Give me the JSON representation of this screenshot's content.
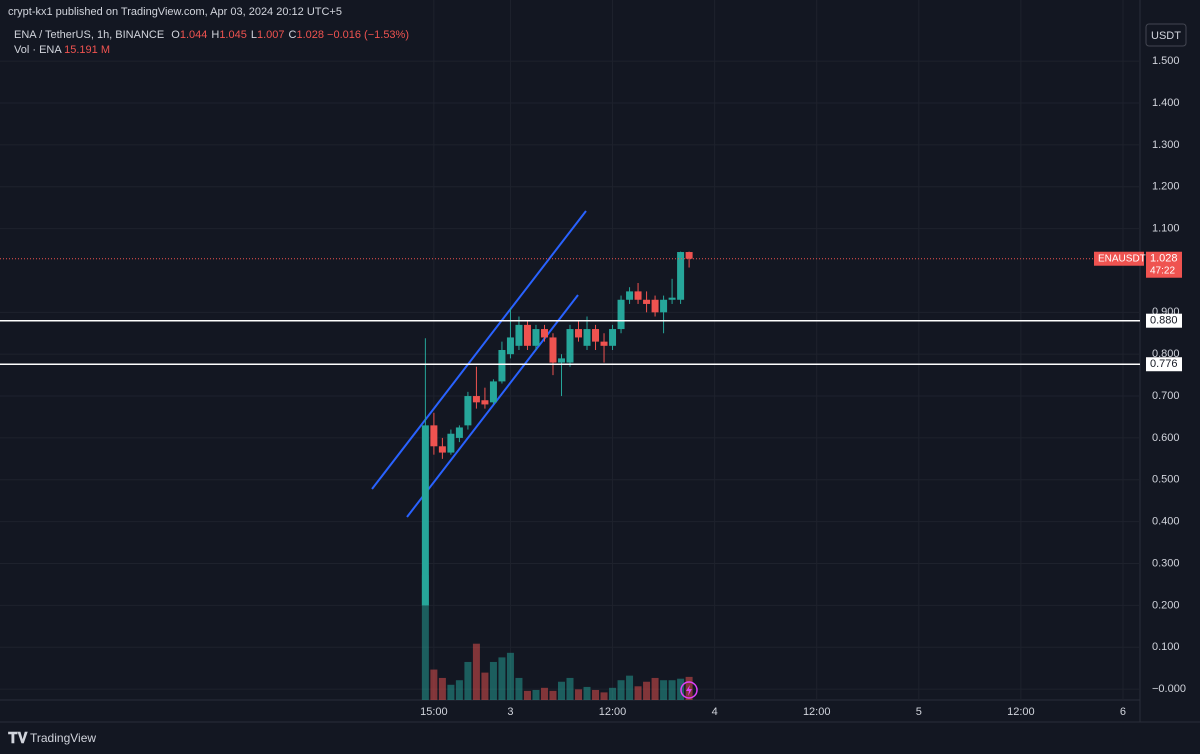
{
  "publisher": "crypt-kx1 published on TradingView.com, Apr 03, 2024 20:12 UTC+5",
  "brand": "TradingView",
  "legend": {
    "symbol": "ENA / TetherUS, 1h, BINANCE",
    "ohlc": [
      {
        "key": "O",
        "value": "1.044"
      },
      {
        "key": "H",
        "value": "1.045"
      },
      {
        "key": "L",
        "value": "1.007"
      },
      {
        "key": "C",
        "value": "1.028"
      }
    ],
    "change": "−0.016 (−1.53%)",
    "volume_name": "Vol · ENA"
  },
  "chart_data": {
    "type": "candlestick",
    "currency": "USDT",
    "up_color": "#26a69a",
    "down_color": "#ef5350",
    "open": [
      0.2,
      0.63,
      0.58,
      0.565,
      0.6,
      0.63,
      0.7,
      0.69,
      0.685,
      0.735,
      0.8,
      0.82,
      0.87,
      0.82,
      0.86,
      0.84,
      0.78,
      0.78,
      0.86,
      0.82,
      0.86,
      0.83,
      0.82,
      0.86,
      0.93,
      0.95,
      0.93,
      0.93,
      0.9,
      0.93,
      0.93,
      1.044
    ],
    "high": [
      0.838,
      0.66,
      0.6,
      0.62,
      0.63,
      0.71,
      0.77,
      0.72,
      0.74,
      0.83,
      0.91,
      0.89,
      0.88,
      0.87,
      0.87,
      0.85,
      0.8,
      0.87,
      0.88,
      0.89,
      0.87,
      0.85,
      0.87,
      0.94,
      0.96,
      0.97,
      0.95,
      0.94,
      0.94,
      0.98,
      1.045,
      1.045
    ],
    "low": [
      0.2,
      0.56,
      0.55,
      0.56,
      0.59,
      0.62,
      0.67,
      0.67,
      0.68,
      0.73,
      0.79,
      0.81,
      0.81,
      0.81,
      0.83,
      0.75,
      0.7,
      0.77,
      0.83,
      0.81,
      0.81,
      0.78,
      0.81,
      0.85,
      0.92,
      0.92,
      0.9,
      0.89,
      0.85,
      0.92,
      0.92,
      1.007
    ],
    "close": [
      0.63,
      0.58,
      0.565,
      0.61,
      0.625,
      0.7,
      0.685,
      0.68,
      0.735,
      0.81,
      0.84,
      0.87,
      0.82,
      0.86,
      0.84,
      0.78,
      0.79,
      0.86,
      0.84,
      0.86,
      0.83,
      0.82,
      0.86,
      0.93,
      0.95,
      0.93,
      0.92,
      0.9,
      0.93,
      0.935,
      1.044,
      1.028
    ],
    "volume": [
      82,
      20,
      14.5,
      10,
      13,
      25,
      37,
      18,
      25,
      28,
      31,
      14.5,
      6,
      6.6,
      8,
      6,
      12,
      14.5,
      7,
      8.6,
      6.6,
      5,
      8,
      13,
      16,
      9,
      12,
      14.5,
      13,
      13,
      14,
      15.191
    ],
    "volume_labels": [
      null,
      null,
      null,
      null,
      null,
      null,
      null,
      null,
      null,
      null,
      null,
      null,
      null,
      null,
      null,
      null,
      null,
      null,
      null,
      null,
      null,
      null,
      null,
      null,
      null,
      null,
      null,
      null,
      null,
      null,
      null,
      "15.191 M"
    ],
    "volume_lim": [
      0,
      460
    ],
    "xlim": [
      -50,
      84
    ],
    "xticks": [
      {
        "value": 1,
        "label": "15:00"
      },
      {
        "value": 10,
        "label": "3"
      },
      {
        "value": 22,
        "label": "12:00"
      },
      {
        "value": 34,
        "label": "4"
      },
      {
        "value": 46,
        "label": "12:00"
      },
      {
        "value": 58,
        "label": "5"
      },
      {
        "value": 70,
        "label": "12:00"
      },
      {
        "value": 82,
        "label": "6"
      }
    ],
    "ylim": [
      -0.026,
      1.646
    ],
    "yticks": [
      {
        "value": 0,
        "label": "−0.000"
      },
      {
        "value": 0.1,
        "label": "0.100"
      },
      {
        "value": 0.2,
        "label": "0.200"
      },
      {
        "value": 0.3,
        "label": "0.300"
      },
      {
        "value": 0.4,
        "label": "0.400"
      },
      {
        "value": 0.5,
        "label": "0.500"
      },
      {
        "value": 0.6,
        "label": "0.600"
      },
      {
        "value": 0.7,
        "label": "0.700"
      },
      {
        "value": 0.8,
        "label": "0.800"
      },
      {
        "value": 0.9,
        "label": "0.900"
      },
      {
        "value": 1.1,
        "label": "1.100"
      },
      {
        "value": 1.2,
        "label": "1.200"
      },
      {
        "value": 1.3,
        "label": "1.300"
      },
      {
        "value": 1.4,
        "label": "1.400"
      },
      {
        "value": 1.5,
        "label": "1.500"
      }
    ],
    "grid": true,
    "levels": [
      {
        "value": 0.88,
        "label": "0.880"
      },
      {
        "value": 0.776,
        "label": "0.776"
      }
    ],
    "last_price": {
      "name": "ENAUSDT",
      "value": 1.028,
      "label": "1.028",
      "countdown": "47:22"
    }
  }
}
